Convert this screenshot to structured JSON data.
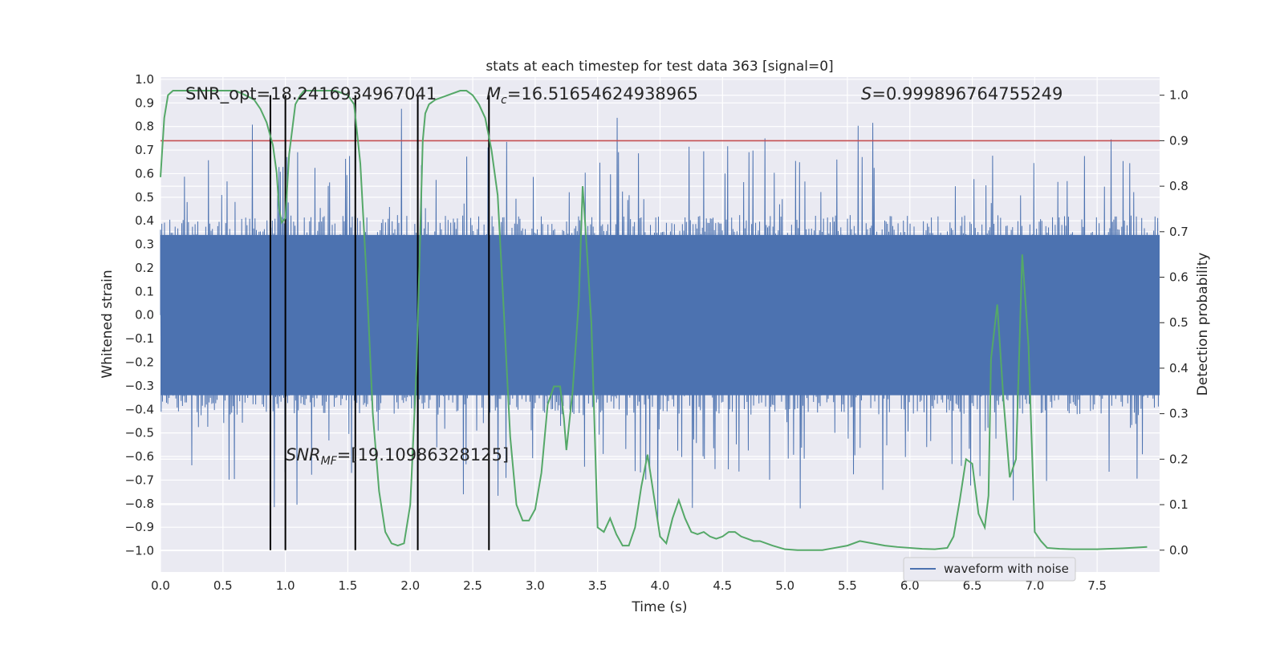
{
  "chart_data": {
    "type": "line",
    "title": "stats at each timestep for test data 363 [signal=0]",
    "xlabel": "Time (s)",
    "ylabel": "Whitened strain",
    "ylabel_right": "Detection probability",
    "xlim": [
      0.0,
      8.0
    ],
    "ylim": [
      -1.09,
      1.01
    ],
    "ylim_right": [
      -0.048,
      1.04
    ],
    "grid": true,
    "legend_placement": "lower-right",
    "x_ticks": [
      "0.0",
      "0.5",
      "1.0",
      "1.5",
      "2.0",
      "2.5",
      "3.0",
      "3.5",
      "4.0",
      "4.5",
      "5.0",
      "5.5",
      "6.0",
      "6.5",
      "7.0",
      "7.5"
    ],
    "y_ticks": [
      "1.0",
      "0.9",
      "0.8",
      "0.7",
      "0.6",
      "0.5",
      "0.4",
      "0.3",
      "0.2",
      "0.1",
      "0.0",
      "−0.1",
      "−0.2",
      "−0.3",
      "−0.4",
      "−0.5",
      "−0.6",
      "−0.7",
      "−0.8",
      "−0.9",
      "−1.0"
    ],
    "y_ticks_right": [
      "1.0",
      "0.9",
      "0.8",
      "0.7",
      "0.6",
      "0.5",
      "0.4",
      "0.3",
      "0.2",
      "0.1",
      "0.0"
    ],
    "annotations": {
      "snr_opt": "SNR_opt=18.2416934967041",
      "mc_symbol": "M",
      "mc_sub": "c",
      "mc_value": "=16.51654624938965",
      "s_symbol": "S",
      "s_value": "=0.999896764755249",
      "snrmf_symbol": "SNR",
      "snrmf_sub": "MF",
      "snrmf_value": "=[19.10986328125]"
    },
    "series": [
      {
        "name": "waveform with noise",
        "axis": "left",
        "color": "#4c72b0",
        "kind": "noise",
        "core_amplitude": 0.34,
        "spike_max": 0.9
      },
      {
        "axis": "right",
        "color": "#55a868",
        "x": [
          0.0,
          0.03,
          0.06,
          0.1,
          0.2,
          0.3,
          0.5,
          0.6,
          0.68,
          0.75,
          0.8,
          0.85,
          0.9,
          0.93,
          0.95,
          0.97,
          1.0,
          1.03,
          1.08,
          1.12,
          1.15,
          1.2,
          1.3,
          1.4,
          1.5,
          1.55,
          1.6,
          1.65,
          1.7,
          1.75,
          1.8,
          1.85,
          1.9,
          1.95,
          2.0,
          2.05,
          2.08,
          2.1,
          2.12,
          2.15,
          2.2,
          2.3,
          2.4,
          2.45,
          2.5,
          2.55,
          2.6,
          2.65,
          2.7,
          2.75,
          2.8,
          2.85,
          2.9,
          2.95,
          3.0,
          3.05,
          3.1,
          3.15,
          3.2,
          3.23,
          3.25,
          3.3,
          3.35,
          3.38,
          3.4,
          3.45,
          3.5,
          3.55,
          3.6,
          3.65,
          3.7,
          3.75,
          3.8,
          3.85,
          3.9,
          3.95,
          4.0,
          4.05,
          4.1,
          4.15,
          4.2,
          4.25,
          4.3,
          4.35,
          4.4,
          4.45,
          4.5,
          4.55,
          4.6,
          4.65,
          4.7,
          4.75,
          4.8,
          4.9,
          5.0,
          5.1,
          5.2,
          5.3,
          5.4,
          5.5,
          5.6,
          5.7,
          5.8,
          5.9,
          6.0,
          6.1,
          6.2,
          6.3,
          6.35,
          6.4,
          6.45,
          6.5,
          6.55,
          6.6,
          6.63,
          6.65,
          6.7,
          6.75,
          6.8,
          6.85,
          6.9,
          6.95,
          7.0,
          7.05,
          7.1,
          7.2,
          7.3,
          7.5,
          7.7,
          7.9
        ],
        "values": [
          0.82,
          0.95,
          1.0,
          1.01,
          1.01,
          1.01,
          1.01,
          1.01,
          1.0,
          0.99,
          0.97,
          0.94,
          0.89,
          0.83,
          0.75,
          0.72,
          0.73,
          0.87,
          0.98,
          1.0,
          1.01,
          1.01,
          1.01,
          1.01,
          1.0,
          0.98,
          0.85,
          0.6,
          0.3,
          0.13,
          0.04,
          0.015,
          0.01,
          0.015,
          0.1,
          0.4,
          0.7,
          0.9,
          0.96,
          0.98,
          0.99,
          1.0,
          1.01,
          1.01,
          1.0,
          0.98,
          0.95,
          0.88,
          0.78,
          0.52,
          0.25,
          0.1,
          0.065,
          0.065,
          0.09,
          0.17,
          0.32,
          0.36,
          0.36,
          0.29,
          0.22,
          0.35,
          0.55,
          0.8,
          0.72,
          0.5,
          0.05,
          0.04,
          0.07,
          0.035,
          0.01,
          0.01,
          0.05,
          0.14,
          0.21,
          0.12,
          0.03,
          0.015,
          0.07,
          0.11,
          0.07,
          0.04,
          0.035,
          0.04,
          0.03,
          0.025,
          0.03,
          0.04,
          0.04,
          0.03,
          0.025,
          0.02,
          0.02,
          0.01,
          0.002,
          0.0,
          0.0,
          0.0,
          0.005,
          0.01,
          0.02,
          0.015,
          0.01,
          0.007,
          0.005,
          0.003,
          0.002,
          0.005,
          0.03,
          0.11,
          0.2,
          0.19,
          0.08,
          0.05,
          0.12,
          0.42,
          0.54,
          0.33,
          0.16,
          0.2,
          0.65,
          0.45,
          0.04,
          0.02,
          0.005,
          0.003,
          0.002,
          0.002,
          0.004,
          0.007
        ]
      }
    ],
    "threshold": {
      "axis": "right",
      "value": 0.9,
      "color": "#c44e52"
    },
    "vertical_lines": {
      "x": [
        0.88,
        1.0,
        1.56,
        2.06,
        2.63
      ],
      "y_range_right": [
        0.0,
        1.0
      ],
      "color": "#000000"
    }
  }
}
